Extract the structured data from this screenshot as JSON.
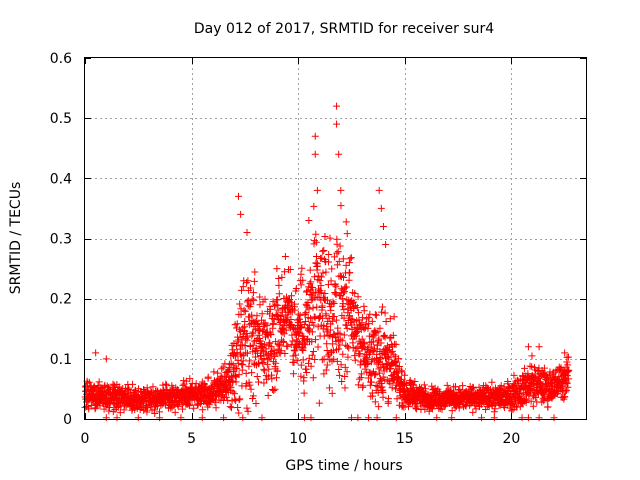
{
  "chart_data": {
    "type": "scatter",
    "title": "Day 012 of 2017, SRMTID for receiver sur4",
    "xlabel": "GPS time / hours",
    "ylabel": "SRMTID / TECUs",
    "xlim": [
      0,
      23.5
    ],
    "ylim": [
      0,
      0.6
    ],
    "xticks": [
      0,
      5,
      10,
      15,
      20
    ],
    "xtick_labels": [
      "0",
      "5",
      "10",
      "15",
      "20"
    ],
    "yticks": [
      0,
      0.1,
      0.2,
      0.3,
      0.4,
      0.5,
      0.6
    ],
    "ytick_labels": [
      "0",
      "0.1",
      "0.2",
      "0.3",
      "0.4",
      "0.5",
      "0.6"
    ],
    "grid": true,
    "marker": "+",
    "color": "#ff0000",
    "series": [
      {
        "name": "SRMTID",
        "envelope_hours": [
          0,
          1,
          2,
          3,
          4,
          5,
          6,
          6.8,
          7.2,
          7.6,
          8.0,
          8.5,
          9.0,
          9.5,
          10.0,
          10.5,
          10.8,
          11.2,
          11.6,
          12.0,
          12.5,
          13.0,
          13.5,
          14.0,
          14.5,
          15.0,
          16,
          17,
          18,
          19,
          20,
          20.5,
          21,
          21.5,
          22,
          22.7
        ],
        "envelope_median": [
          0.04,
          0.038,
          0.035,
          0.034,
          0.035,
          0.04,
          0.045,
          0.06,
          0.1,
          0.13,
          0.13,
          0.12,
          0.15,
          0.18,
          0.14,
          0.15,
          0.19,
          0.18,
          0.17,
          0.2,
          0.17,
          0.12,
          0.1,
          0.11,
          0.08,
          0.045,
          0.035,
          0.034,
          0.035,
          0.035,
          0.04,
          0.05,
          0.06,
          0.055,
          0.055,
          0.07
        ],
        "envelope_spread": [
          0.02,
          0.018,
          0.016,
          0.016,
          0.016,
          0.018,
          0.02,
          0.03,
          0.08,
          0.1,
          0.08,
          0.06,
          0.07,
          0.06,
          0.07,
          0.09,
          0.12,
          0.1,
          0.09,
          0.12,
          0.08,
          0.05,
          0.06,
          0.08,
          0.04,
          0.02,
          0.015,
          0.015,
          0.015,
          0.016,
          0.02,
          0.025,
          0.03,
          0.025,
          0.025,
          0.025
        ],
        "peaks": [
          {
            "x": 0.5,
            "y": 0.11
          },
          {
            "x": 1.0,
            "y": 0.1
          },
          {
            "x": 7.2,
            "y": 0.37
          },
          {
            "x": 7.3,
            "y": 0.34
          },
          {
            "x": 7.6,
            "y": 0.31
          },
          {
            "x": 7.9,
            "y": 0.21
          },
          {
            "x": 9.0,
            "y": 0.25
          },
          {
            "x": 9.4,
            "y": 0.27
          },
          {
            "x": 10.1,
            "y": 0.23
          },
          {
            "x": 10.5,
            "y": 0.33
          },
          {
            "x": 10.8,
            "y": 0.47
          },
          {
            "x": 10.8,
            "y": 0.44
          },
          {
            "x": 10.9,
            "y": 0.38
          },
          {
            "x": 11.2,
            "y": 0.28
          },
          {
            "x": 11.8,
            "y": 0.52
          },
          {
            "x": 11.8,
            "y": 0.49
          },
          {
            "x": 11.9,
            "y": 0.44
          },
          {
            "x": 12.0,
            "y": 0.38
          },
          {
            "x": 12.4,
            "y": 0.26
          },
          {
            "x": 13.1,
            "y": 0.18
          },
          {
            "x": 13.8,
            "y": 0.38
          },
          {
            "x": 13.9,
            "y": 0.35
          },
          {
            "x": 14.0,
            "y": 0.32
          },
          {
            "x": 14.1,
            "y": 0.29
          },
          {
            "x": 14.5,
            "y": 0.17
          },
          {
            "x": 20.8,
            "y": 0.12
          },
          {
            "x": 21.3,
            "y": 0.12
          },
          {
            "x": 22.5,
            "y": 0.11
          }
        ],
        "zero_points_hours": [
          1.0,
          1.5,
          2.5,
          3.5,
          4.5,
          5.5,
          6.5,
          7.4,
          8.3,
          10.3,
          10.6,
          12.5,
          12.8,
          13.3,
          13.7,
          14.6,
          16.5,
          17.2,
          18.6,
          19.2,
          20.5,
          20.8,
          21.3,
          22.0
        ]
      }
    ]
  }
}
